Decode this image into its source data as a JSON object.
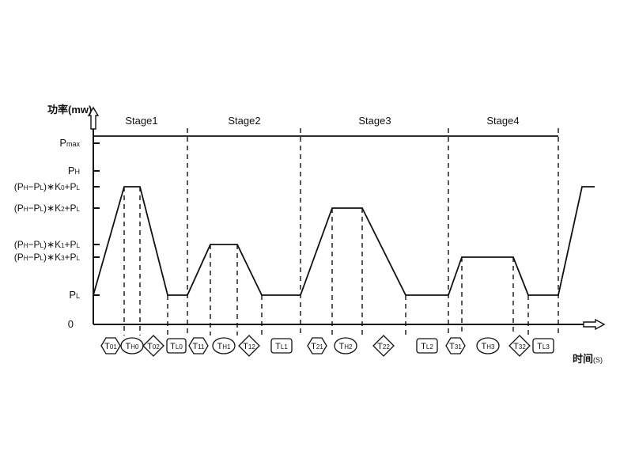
{
  "y_axis_title": "功率(mw)",
  "x_axis_title_main": "时间",
  "x_axis_title_unit": "(S)",
  "y_levels": [
    {
      "key": "pmax",
      "base": "P",
      "sub": "max"
    },
    {
      "key": "ph",
      "base": "P",
      "sub": "H"
    },
    {
      "key": "k0",
      "pre": "(P",
      "s1": "H",
      "mid": "−P",
      "s2": "L",
      "post": ")∗K",
      "s3": "0",
      "tail": "+P",
      "s4": "L"
    },
    {
      "key": "k2",
      "pre": "(P",
      "s1": "H",
      "mid": "−P",
      "s2": "L",
      "post": ")∗K",
      "s3": "2",
      "tail": "+P",
      "s4": "L"
    },
    {
      "key": "k1",
      "pre": "(P",
      "s1": "H",
      "mid": "−P",
      "s2": "L",
      "post": ")∗K",
      "s3": "1",
      "tail": "+P",
      "s4": "L"
    },
    {
      "key": "k3",
      "pre": "(P",
      "s1": "H",
      "mid": "−P",
      "s2": "L",
      "post": ")∗K",
      "s3": "3",
      "tail": "+P",
      "s4": "L"
    },
    {
      "key": "pl",
      "base": "P",
      "sub": "L"
    },
    {
      "key": "zero",
      "base": "0",
      "sub": ""
    }
  ],
  "stages": [
    "Stage1",
    "Stage2",
    "Stage3",
    "Stage4"
  ],
  "intervals": [
    {
      "base": "T",
      "sub": "01",
      "shape": "hexagon"
    },
    {
      "base": "T",
      "sub": "H0",
      "shape": "ellipse"
    },
    {
      "base": "T",
      "sub": "02",
      "shape": "diamond"
    },
    {
      "base": "T",
      "sub": "L0",
      "shape": "rect"
    },
    {
      "base": "T",
      "sub": "11",
      "shape": "hexagon"
    },
    {
      "base": "T",
      "sub": "H1",
      "shape": "ellipse"
    },
    {
      "base": "T",
      "sub": "12",
      "shape": "diamond"
    },
    {
      "base": "T",
      "sub": "L1",
      "shape": "rect"
    },
    {
      "base": "T",
      "sub": "21",
      "shape": "hexagon"
    },
    {
      "base": "T",
      "sub": "H2",
      "shape": "ellipse"
    },
    {
      "base": "T",
      "sub": "22",
      "shape": "diamond"
    },
    {
      "base": "T",
      "sub": "L2",
      "shape": "rect"
    },
    {
      "base": "T",
      "sub": "31",
      "shape": "hexagon"
    },
    {
      "base": "T",
      "sub": "H3",
      "shape": "ellipse"
    },
    {
      "base": "T",
      "sub": "32",
      "shape": "diamond"
    },
    {
      "base": "T",
      "sub": "L3",
      "shape": "rect"
    }
  ]
}
